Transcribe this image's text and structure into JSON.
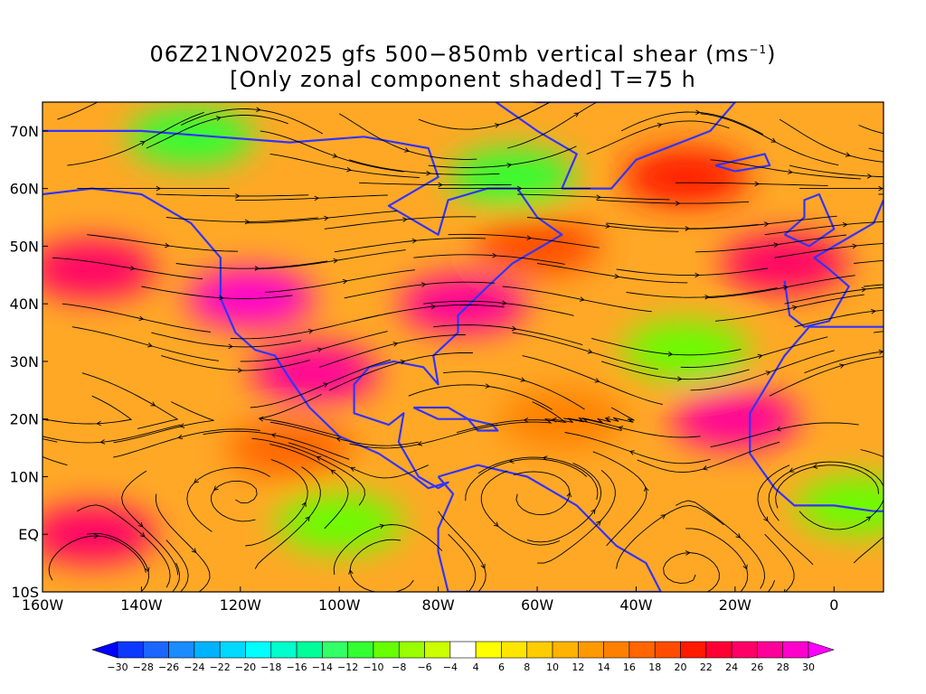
{
  "title": {
    "line1_prefix": "06Z21NOV2025 gfs 500−850mb vertical shear (ms",
    "line1_sup": "−1",
    "line1_suffix": ")",
    "line2": "[Only zonal component shaded] T=75 h"
  },
  "map": {
    "lon_range": [
      -160,
      10
    ],
    "lat_range": [
      -10,
      75
    ],
    "x_ticks": [
      {
        "lon": -160,
        "label": "160W"
      },
      {
        "lon": -140,
        "label": "140W"
      },
      {
        "lon": -120,
        "label": "120W"
      },
      {
        "lon": -100,
        "label": "100W"
      },
      {
        "lon": -80,
        "label": "80W"
      },
      {
        "lon": -60,
        "label": "60W"
      },
      {
        "lon": -40,
        "label": "40W"
      },
      {
        "lon": -20,
        "label": "20W"
      },
      {
        "lon": 0,
        "label": "0"
      }
    ],
    "y_ticks": [
      {
        "lat": 70,
        "label": "70N"
      },
      {
        "lat": 60,
        "label": "60N"
      },
      {
        "lat": 50,
        "label": "50N"
      },
      {
        "lat": 40,
        "label": "40N"
      },
      {
        "lat": 30,
        "label": "30N"
      },
      {
        "lat": 20,
        "label": "20N"
      },
      {
        "lat": 10,
        "label": "10N"
      },
      {
        "lat": 0,
        "label": "EQ"
      },
      {
        "lat": -10,
        "label": "10S"
      }
    ],
    "shear_features": [
      {
        "lon": -150,
        "lat": 46,
        "value": 24
      },
      {
        "lon": -118,
        "lat": 41,
        "value": 28
      },
      {
        "lon": -105,
        "lat": 28,
        "value": 26
      },
      {
        "lon": -75,
        "lat": 40,
        "value": 26
      },
      {
        "lon": -60,
        "lat": 50,
        "value": 18
      },
      {
        "lon": -30,
        "lat": 62,
        "value": 20
      },
      {
        "lon": -10,
        "lat": 47,
        "value": 24
      },
      {
        "lon": -20,
        "lat": 20,
        "value": 26
      },
      {
        "lon": -150,
        "lat": 0,
        "value": 24
      },
      {
        "lon": -100,
        "lat": 2,
        "value": -10
      },
      {
        "lon": -130,
        "lat": 69,
        "value": -12
      },
      {
        "lon": -65,
        "lat": 62,
        "value": -12
      },
      {
        "lon": -30,
        "lat": 32,
        "value": -10
      },
      {
        "lon": 5,
        "lat": 5,
        "value": -10
      },
      {
        "lon": -110,
        "lat": 15,
        "value": 16
      },
      {
        "lon": -55,
        "lat": 20,
        "value": 14
      }
    ],
    "colors": {
      "coast": "#3333ff",
      "streamline": "#000000"
    }
  },
  "colorbar": {
    "levels": [
      "-30",
      "-28",
      "-26",
      "-24",
      "-22",
      "-20",
      "-18",
      "-16",
      "-14",
      "-12",
      "-10",
      "-8",
      "-6",
      "-4",
      "4",
      "6",
      "8",
      "10",
      "12",
      "14",
      "16",
      "18",
      "20",
      "22",
      "24",
      "26",
      "28",
      "30"
    ],
    "colors": [
      "#0000ff",
      "#0d38ff",
      "#1a66ff",
      "#1a8cff",
      "#00b3ff",
      "#00d9ff",
      "#00ffff",
      "#00ffcc",
      "#00ff99",
      "#33ff66",
      "#33ff33",
      "#66ff00",
      "#99ff00",
      "#ccff00",
      "#ffffff",
      "#ffff00",
      "#ffe600",
      "#ffcc00",
      "#ffb300",
      "#ff9900",
      "#ff8000",
      "#ff6600",
      "#ff4d00",
      "#ff1a00",
      "#ff0033",
      "#ff0066",
      "#ff0099",
      "#ff00cc",
      "#ff00ff"
    ]
  }
}
